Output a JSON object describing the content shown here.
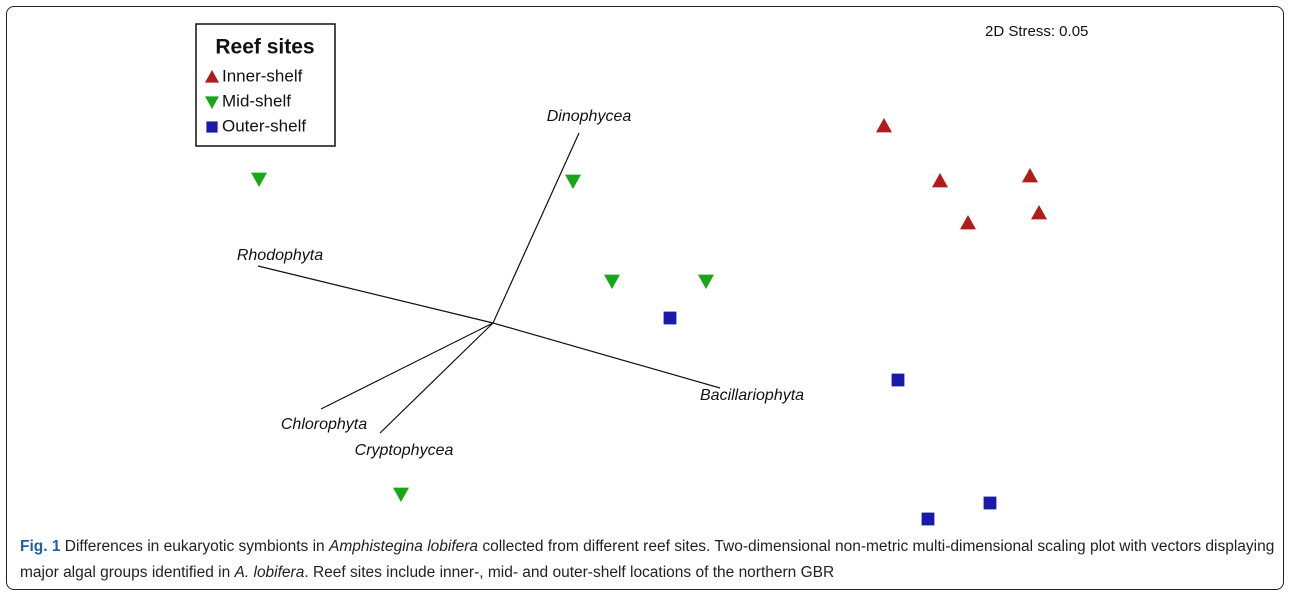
{
  "chart_data": {
    "type": "scatter",
    "annotation": "2D Stress: 0.05",
    "legend_title": "Reef sites",
    "legend": "upper left",
    "xlim": [
      -4.85,
      7.91
    ],
    "ylim": [
      -2.17,
      3.15
    ],
    "series": [
      {
        "name": "Inner-shelf",
        "color": "#b01c1c",
        "marker": "triangle-up",
        "x": [
          3.91,
          4.47,
          5.37,
          4.75,
          5.46
        ],
        "values": [
          1.97,
          1.42,
          1.47,
          1.0,
          1.1
        ]
      },
      {
        "name": "Mid-shelf",
        "color": "#19a619",
        "marker": "triangle-down",
        "x": [
          -2.34,
          0.8,
          1.19,
          2.13,
          -0.92
        ],
        "values": [
          1.44,
          1.42,
          0.42,
          0.42,
          -1.71
        ]
      },
      {
        "name": "Outer-shelf",
        "color": "#1a1aaa",
        "marker": "square",
        "x": [
          1.77,
          4.05,
          4.97,
          4.35
        ],
        "values": [
          0.05,
          -0.57,
          -1.8,
          -1.96
        ]
      }
    ],
    "vectors": [
      {
        "name": "Dinophycea",
        "x": 0.86,
        "y": 1.9
      },
      {
        "name": "Rhodophyta",
        "x": -2.35,
        "y": 0.57
      },
      {
        "name": "Bacillariophyta",
        "x": 2.27,
        "y": -0.65
      },
      {
        "name": "Chlorophyta",
        "x": -1.72,
        "y": -0.86
      },
      {
        "name": "Cryptophycea",
        "x": -1.13,
        "y": -1.1
      }
    ]
  },
  "caption": [
    "Fig. 1",
    " Differences in eukaryotic symbionts in ",
    "Amphistegina lobifera",
    " collected from different reef sites. Two-dimensional non-metric multi-dimensional scaling plot with vectors displaying major algal groups identified in ",
    "A. lobifera",
    ". Reef sites include inner-, mid- and outer-shelf locations of the northern GBR"
  ]
}
